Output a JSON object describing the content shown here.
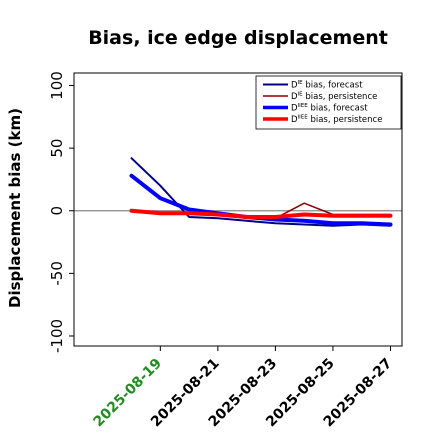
{
  "chart_data": {
    "type": "line",
    "title": "Bias, ice edge displacement",
    "xlabel": "",
    "ylabel": "Displacement bias (km)",
    "ylim": [
      -108,
      110
    ],
    "yticks": [
      -100,
      -50,
      0,
      50,
      100
    ],
    "ytick_labels": [
      "-100",
      "-50",
      "0",
      "50",
      "100"
    ],
    "x_tick_labels": [
      "2025-08-19",
      "2025-08-21",
      "2025-08-23",
      "2025-08-25",
      "2025-08-27"
    ],
    "x_tick_colors": [
      "#228b22",
      "#000000",
      "#000000",
      "#000000",
      "#000000"
    ],
    "x": [
      "2025-08-18",
      "2025-08-19",
      "2025-08-20",
      "2025-08-21",
      "2025-08-22",
      "2025-08-23",
      "2025-08-24",
      "2025-08-25",
      "2025-08-26",
      "2025-08-27"
    ],
    "xlim": [
      "2025-08-16",
      "2025-08-27.4"
    ],
    "zero_line": true,
    "grid": false,
    "legend_position": "top-right",
    "series": [
      {
        "name_base": "D",
        "name_sup": "IE",
        "name_rest": " bias, forecast",
        "color": "#00008b",
        "width": 2,
        "values": [
          42,
          20,
          -5,
          -6,
          -8,
          -10,
          -11,
          -12,
          -11,
          -12
        ]
      },
      {
        "name_base": "D",
        "name_sup": "IE",
        "name_rest": " bias, persistence",
        "color": "#8b0000",
        "width": 1.5,
        "values": [
          0,
          -2,
          -2,
          -3,
          -6,
          -6,
          6,
          -3,
          -3,
          -3
        ]
      },
      {
        "name_base": "D",
        "name_sup": "IIEE",
        "name_rest": " bias, forecast",
        "color": "#0000ff",
        "width": 4,
        "values": [
          28,
          10,
          1,
          -2,
          -5,
          -7,
          -8,
          -10,
          -10,
          -11
        ]
      },
      {
        "name_base": "D",
        "name_sup": "IIEE",
        "name_rest": " bias, persistence",
        "color": "#ff0000",
        "width": 4,
        "values": [
          0,
          -2,
          -2,
          -3,
          -5,
          -5,
          -3,
          -4,
          -4,
          -4
        ]
      }
    ]
  }
}
